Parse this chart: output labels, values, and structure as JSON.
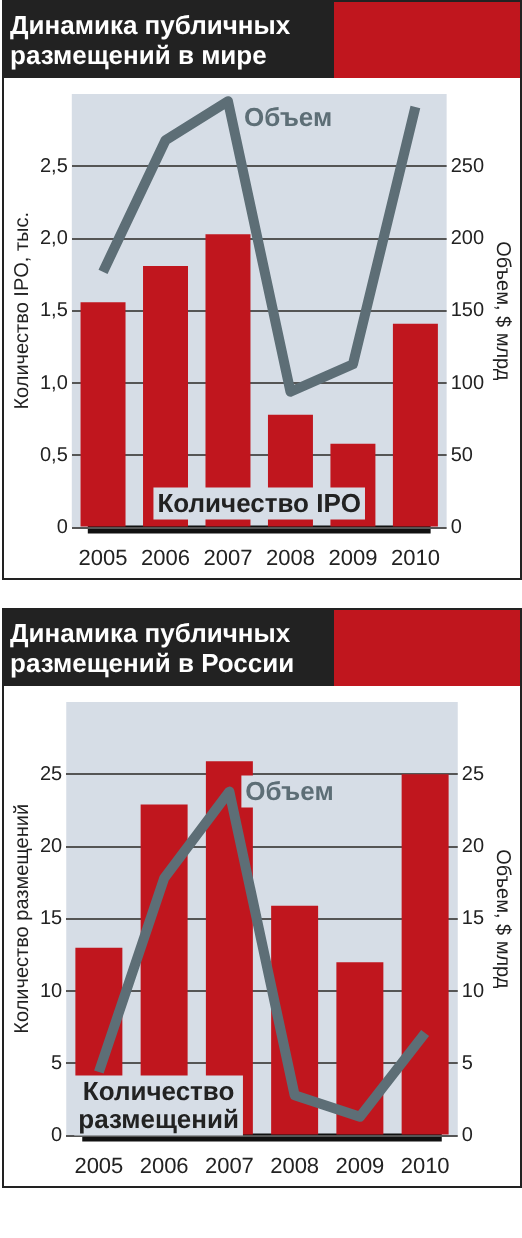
{
  "chart_data": [
    {
      "type": "bar",
      "title": "Динамика публичных размещений в мире",
      "categories": [
        "2005",
        "2006",
        "2007",
        "2008",
        "2009",
        "2010"
      ],
      "ylabel": "Количество IPO, тыс.",
      "y2label": "Объем, $ млрд",
      "ylim": [
        0,
        3.0
      ],
      "yticks": [
        0,
        {
          "value": 0.5,
          "label": "0,5"
        },
        {
          "value": 1.0,
          "label": "1,0"
        },
        {
          "value": 1.5,
          "label": "1,5"
        },
        {
          "value": 2.0,
          "label": "2,0"
        },
        {
          "value": 2.5,
          "label": "2,5"
        }
      ],
      "y2lim": [
        0,
        300
      ],
      "y2ticks": [
        0,
        50,
        100,
        150,
        200,
        250
      ],
      "grid": "y",
      "legend": false,
      "series": [
        {
          "name": "Количество IPO",
          "type": "bar",
          "color": "#c0161e",
          "values": [
            1.56,
            1.81,
            2.03,
            0.78,
            0.58,
            1.41
          ]
        },
        {
          "name": "Объем",
          "type": "line",
          "axis": "y2",
          "color": "#5d6e76",
          "values": [
            177,
            268,
            295,
            94,
            113,
            291
          ]
        }
      ]
    },
    {
      "type": "bar",
      "title": "Динамика публичных размещений в России",
      "categories": [
        "2005",
        "2006",
        "2007",
        "2008",
        "2009",
        "2010"
      ],
      "ylabel": "Количество размещений",
      "y2label": "Объем, $ млрд",
      "ylim": [
        0,
        30
      ],
      "yticks": [
        0,
        5,
        10,
        15,
        20,
        25
      ],
      "y2lim": [
        0,
        30
      ],
      "y2ticks": [
        0,
        5,
        10,
        15,
        20,
        25
      ],
      "grid": "y",
      "legend": false,
      "series": [
        {
          "name": "Количество размещений",
          "type": "bar",
          "color": "#c0161e",
          "values": [
            13.0,
            22.9,
            25.9,
            15.9,
            12.0,
            25.0
          ]
        },
        {
          "name": "Объем",
          "type": "line",
          "axis": "y2",
          "color": "#5d6e76",
          "values": [
            4.4,
            17.8,
            23.8,
            2.8,
            1.3,
            7.1
          ]
        }
      ]
    }
  ]
}
